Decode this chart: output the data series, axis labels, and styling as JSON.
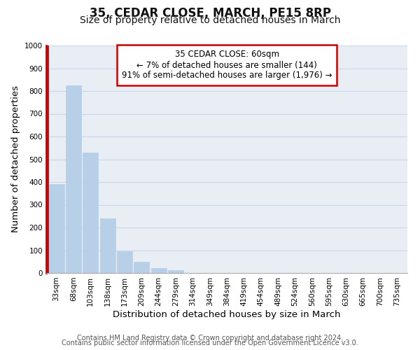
{
  "title": "35, CEDAR CLOSE, MARCH, PE15 8RP",
  "subtitle": "Size of property relative to detached houses in March",
  "xlabel": "Distribution of detached houses by size in March",
  "ylabel": "Number of detached properties",
  "bar_labels": [
    "33sqm",
    "68sqm",
    "103sqm",
    "138sqm",
    "173sqm",
    "209sqm",
    "244sqm",
    "279sqm",
    "314sqm",
    "349sqm",
    "384sqm",
    "419sqm",
    "454sqm",
    "489sqm",
    "524sqm",
    "560sqm",
    "595sqm",
    "630sqm",
    "665sqm",
    "700sqm",
    "735sqm"
  ],
  "bar_values": [
    390,
    825,
    530,
    240,
    95,
    50,
    22,
    12,
    0,
    0,
    0,
    0,
    0,
    0,
    0,
    0,
    0,
    0,
    0,
    0,
    0
  ],
  "bar_color": "#b8cfe8",
  "bar_edge_color": "#b8cfe8",
  "highlight_color": "#cc0000",
  "ylim": [
    0,
    1000
  ],
  "yticks": [
    0,
    100,
    200,
    300,
    400,
    500,
    600,
    700,
    800,
    900,
    1000
  ],
  "grid_color": "#c8d8e8",
  "plot_bg_color": "#e8eef4",
  "fig_bg_color": "#ffffff",
  "annotation_title": "35 CEDAR CLOSE: 60sqm",
  "annotation_line1": "← 7% of detached houses are smaller (144)",
  "annotation_line2": "91% of semi-detached houses are larger (1,976) →",
  "annotation_box_color": "#ffffff",
  "annotation_border_color": "#cc0000",
  "footer_line1": "Contains HM Land Registry data © Crown copyright and database right 2024.",
  "footer_line2": "Contains public sector information licensed under the Open Government Licence v3.0.",
  "title_fontsize": 12,
  "subtitle_fontsize": 10,
  "axis_label_fontsize": 9.5,
  "tick_fontsize": 7.5,
  "annotation_fontsize": 8.5,
  "footer_fontsize": 7
}
